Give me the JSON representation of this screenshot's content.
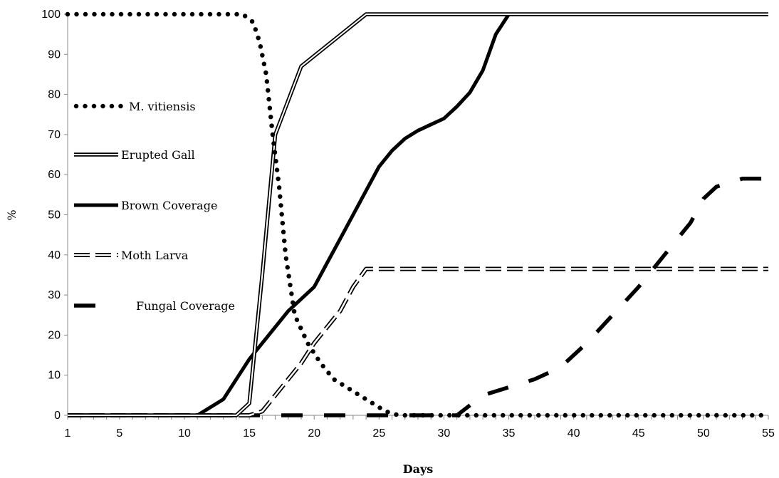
{
  "chart_data": {
    "type": "line",
    "title": "",
    "xlabel": "Days",
    "ylabel": "%",
    "xlim": [
      1,
      55
    ],
    "ylim": [
      0,
      100
    ],
    "x_ticks": [
      1,
      5,
      10,
      15,
      20,
      25,
      30,
      35,
      40,
      45,
      50,
      55
    ],
    "y_ticks": [
      0,
      10,
      20,
      30,
      40,
      50,
      60,
      70,
      80,
      90,
      100
    ],
    "grid": false,
    "legend_position": "left",
    "series": [
      {
        "name": "M. vitiensis",
        "style": "dotted",
        "x": [
          1,
          12,
          14.5,
          15.3,
          15.8,
          16.3,
          16.8,
          17.3,
          17.8,
          18.5,
          19.5,
          20.5,
          21.5,
          22.5,
          23.5,
          24.5,
          25.5,
          26.5,
          30,
          40,
          50,
          55
        ],
        "y": [
          100,
          100,
          100,
          98,
          93,
          85,
          70,
          57,
          40,
          25,
          18,
          13,
          9,
          7,
          5,
          3,
          1,
          0,
          0,
          0,
          0,
          0
        ]
      },
      {
        "name": "Erupted Gall",
        "style": "double",
        "x": [
          1,
          10,
          14,
          15,
          16,
          17,
          19,
          24,
          30,
          35,
          40,
          45,
          50,
          55
        ],
        "y": [
          0,
          0,
          0,
          3,
          35,
          70,
          87,
          100,
          100,
          100,
          100,
          100,
          100,
          100
        ]
      },
      {
        "name": "Brown Coverage",
        "style": "thick",
        "x": [
          1,
          11,
          13,
          14,
          15,
          16,
          17,
          18,
          19,
          20,
          21,
          22,
          23,
          24,
          25,
          26,
          27,
          28,
          29,
          30,
          31,
          32,
          33,
          34,
          35,
          40,
          45,
          50,
          55
        ],
        "y": [
          0,
          0,
          4,
          9,
          14,
          18,
          22,
          26,
          29,
          32,
          38,
          44,
          50,
          56,
          62,
          66,
          69,
          71,
          72.5,
          74,
          77,
          80.5,
          86,
          95,
          100,
          100,
          100,
          100,
          100
        ]
      },
      {
        "name": "Moth Larva",
        "style": "double-dashed",
        "x": [
          1,
          14,
          15,
          16,
          17,
          18,
          19,
          20,
          21,
          22,
          23,
          24,
          30,
          35,
          40,
          45,
          50,
          55
        ],
        "y": [
          0,
          0,
          0,
          1,
          5,
          9,
          13,
          18,
          22,
          26,
          32,
          36.5,
          36.5,
          36.5,
          36.5,
          36.5,
          36.5,
          36.5
        ]
      },
      {
        "name": "Fungal Coverage",
        "style": "dashed",
        "x": [
          1,
          31,
          33,
          35,
          37,
          39,
          41,
          43,
          45,
          47,
          48,
          49,
          50,
          51,
          53,
          55
        ],
        "y": [
          0,
          0,
          5,
          7,
          9,
          12,
          18,
          25,
          32,
          40,
          44,
          48,
          54,
          57,
          59,
          59
        ]
      }
    ]
  },
  "colors": {
    "line": "#000000",
    "background": "#ffffff"
  }
}
